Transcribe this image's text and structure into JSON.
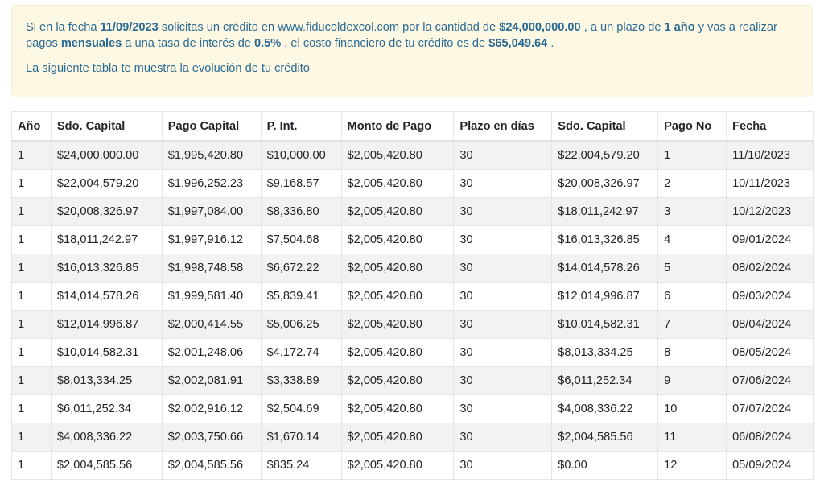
{
  "summary": {
    "t1": "Si en la fecha ",
    "fecha": "11/09/2023",
    "t2": " solicitas un crédito en www.fiducoldexcol.com por la cantidad de ",
    "cantidad": "$24,000,000.00",
    "t3": " , a un plazo de ",
    "plazo": "1 año",
    "t4": " y vas a realizar pagos ",
    "frecuencia": "mensuales",
    "t5": " a una tasa de interés de ",
    "tasa": "0.5%",
    "t6": " , el costo financiero de tu crédito es de ",
    "costo": "$65,049.64",
    "t7": " .",
    "intro": "La siguiente tabla te muestra la evolución de tu crédito"
  },
  "table": {
    "headers": [
      "Año",
      "Sdo. Capital",
      "Pago Capital",
      "P. Int.",
      "Monto de Pago",
      "Plazo en días",
      "Sdo. Capital",
      "Pago No",
      "Fecha"
    ],
    "rows": [
      [
        "1",
        "$24,000,000.00",
        "$1,995,420.80",
        "$10,000.00",
        "$2,005,420.80",
        "30",
        "$22,004,579.20",
        "1",
        "11/10/2023"
      ],
      [
        "1",
        "$22,004,579.20",
        "$1,996,252.23",
        "$9,168.57",
        "$2,005,420.80",
        "30",
        "$20,008,326.97",
        "2",
        "10/11/2023"
      ],
      [
        "1",
        "$20,008,326.97",
        "$1,997,084.00",
        "$8,336.80",
        "$2,005,420.80",
        "30",
        "$18,011,242.97",
        "3",
        "10/12/2023"
      ],
      [
        "1",
        "$18,011,242.97",
        "$1,997,916.12",
        "$7,504.68",
        "$2,005,420.80",
        "30",
        "$16,013,326.85",
        "4",
        "09/01/2024"
      ],
      [
        "1",
        "$16,013,326.85",
        "$1,998,748.58",
        "$6,672.22",
        "$2,005,420.80",
        "30",
        "$14,014,578.26",
        "5",
        "08/02/2024"
      ],
      [
        "1",
        "$14,014,578.26",
        "$1,999,581.40",
        "$5,839.41",
        "$2,005,420.80",
        "30",
        "$12,014,996.87",
        "6",
        "09/03/2024"
      ],
      [
        "1",
        "$12,014,996.87",
        "$2,000,414.55",
        "$5,006.25",
        "$2,005,420.80",
        "30",
        "$10,014,582.31",
        "7",
        "08/04/2024"
      ],
      [
        "1",
        "$10,014,582.31",
        "$2,001,248.06",
        "$4,172.74",
        "$2,005,420.80",
        "30",
        "$8,013,334.25",
        "8",
        "08/05/2024"
      ],
      [
        "1",
        "$8,013,334.25",
        "$2,002,081.91",
        "$3,338.89",
        "$2,005,420.80",
        "30",
        "$6,011,252.34",
        "9",
        "07/06/2024"
      ],
      [
        "1",
        "$6,011,252.34",
        "$2,002,916.12",
        "$2,504.69",
        "$2,005,420.80",
        "30",
        "$4,008,336.22",
        "10",
        "07/07/2024"
      ],
      [
        "1",
        "$4,008,336.22",
        "$2,003,750.66",
        "$1,670.14",
        "$2,005,420.80",
        "30",
        "$2,004,585.56",
        "11",
        "06/08/2024"
      ],
      [
        "1",
        "$2,004,585.56",
        "$2,004,585.56",
        "$835.24",
        "$2,005,420.80",
        "30",
        "$0.00",
        "12",
        "05/09/2024"
      ]
    ]
  },
  "colors": {
    "alert_background": "#fdf8e4",
    "alert_text": "#2b6a92",
    "stripe": "#f2f2f2"
  }
}
